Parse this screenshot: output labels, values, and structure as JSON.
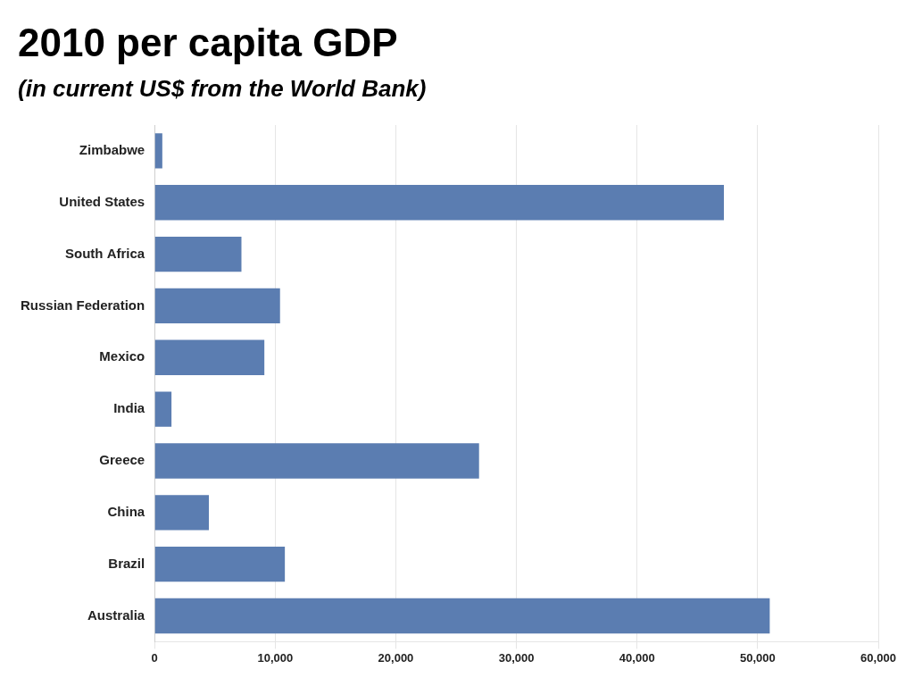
{
  "chart_data": {
    "type": "bar",
    "orientation": "horizontal",
    "title": "2010 per capita GDP",
    "subtitle": "(in current US$ from the World Bank)",
    "categories": [
      "Australia",
      "Brazil",
      "China",
      "Greece",
      "India",
      "Mexico",
      "Russian Federation",
      "South Africa",
      "United States",
      "Zimbabwe"
    ],
    "values": [
      51000,
      10800,
      4500,
      26900,
      1400,
      9100,
      10400,
      7200,
      47200,
      640
    ],
    "color": "#5B7DB1",
    "xlim": [
      0,
      60000
    ],
    "xticks": [
      0,
      {
        "value": 10000,
        "label": "10,000"
      },
      {
        "value": 20000,
        "label": "20,000"
      },
      {
        "value": 30000,
        "label": "30,000"
      },
      {
        "value": 40000,
        "label": "40,000"
      },
      {
        "value": 50000,
        "label": "50,000"
      },
      {
        "value": 60000,
        "label": "60,000"
      }
    ],
    "grid": true
  }
}
